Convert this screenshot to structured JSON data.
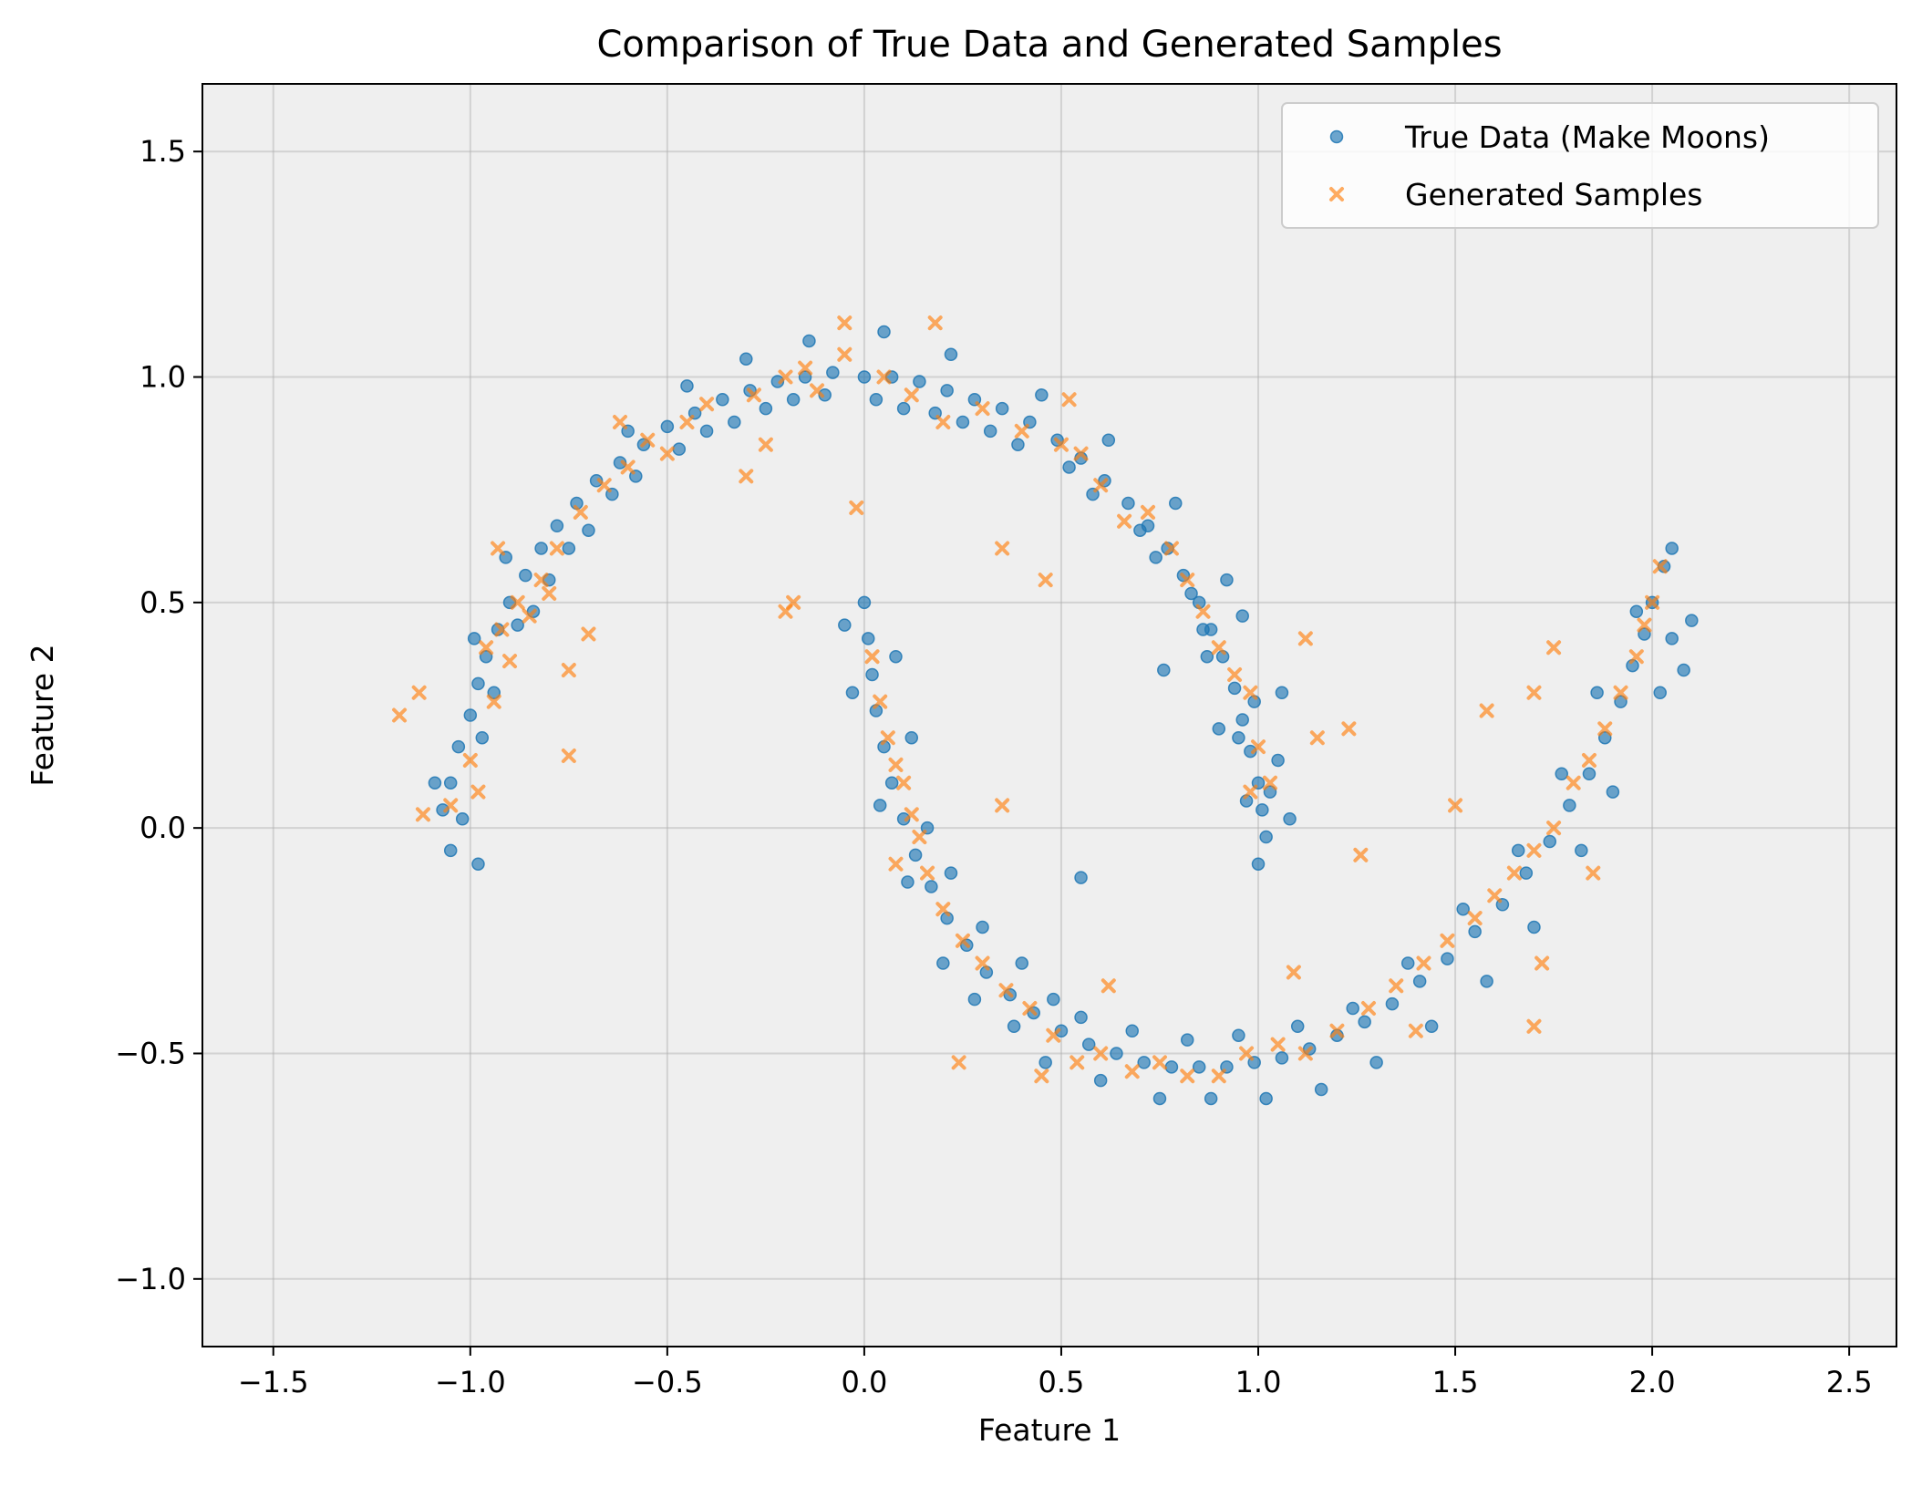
{
  "chart_data": {
    "type": "scatter",
    "title": "Comparison of True Data and Generated Samples",
    "xlabel": "Feature 1",
    "ylabel": "Feature 2",
    "xlim": [
      -1.68,
      2.62
    ],
    "ylim": [
      -1.15,
      1.65
    ],
    "xticks": [
      -1.5,
      -1.0,
      -0.5,
      0.0,
      0.5,
      1.0,
      1.5,
      2.0,
      2.5
    ],
    "xtick_labels": [
      "−1.5",
      "−1.0",
      "−0.5",
      "0.0",
      "0.5",
      "1.0",
      "1.5",
      "2.0",
      "2.5"
    ],
    "yticks": [
      -1.0,
      -0.5,
      0.0,
      0.5,
      1.0,
      1.5
    ],
    "ytick_labels": [
      "−1.0",
      "−0.5",
      "0.0",
      "0.5",
      "1.0",
      "1.5"
    ],
    "grid": true,
    "legend_position": "top-right",
    "background": "#efefef",
    "series": [
      {
        "name": "True Data (Make Moons)",
        "marker": "circle",
        "color": "#1f77b4",
        "alpha": 0.65,
        "points": [
          [
            -1.07,
            0.04
          ],
          [
            -1.05,
            0.1
          ],
          [
            -1.03,
            0.18
          ],
          [
            -1.0,
            0.25
          ],
          [
            -0.98,
            0.32
          ],
          [
            -0.96,
            0.38
          ],
          [
            -0.93,
            0.44
          ],
          [
            -0.9,
            0.5
          ],
          [
            -0.86,
            0.56
          ],
          [
            -0.82,
            0.62
          ],
          [
            -0.78,
            0.67
          ],
          [
            -0.73,
            0.72
          ],
          [
            -0.68,
            0.77
          ],
          [
            -0.62,
            0.81
          ],
          [
            -0.56,
            0.85
          ],
          [
            -0.5,
            0.89
          ],
          [
            -0.43,
            0.92
          ],
          [
            -0.36,
            0.95
          ],
          [
            -0.29,
            0.97
          ],
          [
            -0.22,
            0.99
          ],
          [
            -0.15,
            1.0
          ],
          [
            -0.08,
            1.01
          ],
          [
            0.0,
            1.0
          ],
          [
            0.07,
            1.0
          ],
          [
            0.14,
            0.99
          ],
          [
            0.21,
            0.97
          ],
          [
            0.28,
            0.95
          ],
          [
            0.35,
            0.93
          ],
          [
            0.42,
            0.9
          ],
          [
            0.49,
            0.86
          ],
          [
            0.55,
            0.82
          ],
          [
            0.61,
            0.77
          ],
          [
            0.67,
            0.72
          ],
          [
            0.72,
            0.67
          ],
          [
            0.77,
            0.62
          ],
          [
            0.81,
            0.56
          ],
          [
            0.85,
            0.5
          ],
          [
            0.88,
            0.44
          ],
          [
            0.91,
            0.38
          ],
          [
            0.94,
            0.31
          ],
          [
            0.96,
            0.24
          ],
          [
            0.98,
            0.17
          ],
          [
            1.0,
            0.1
          ],
          [
            1.01,
            0.04
          ],
          [
            1.02,
            -0.02
          ],
          [
            -1.09,
            0.1
          ],
          [
            -1.02,
            0.02
          ],
          [
            -0.97,
            0.2
          ],
          [
            -0.94,
            0.3
          ],
          [
            -0.99,
            0.42
          ],
          [
            -0.88,
            0.45
          ],
          [
            -0.84,
            0.48
          ],
          [
            -0.91,
            0.6
          ],
          [
            -0.8,
            0.55
          ],
          [
            -0.75,
            0.62
          ],
          [
            -0.7,
            0.66
          ],
          [
            -0.64,
            0.74
          ],
          [
            -0.58,
            0.78
          ],
          [
            -0.6,
            0.88
          ],
          [
            -0.47,
            0.84
          ],
          [
            -0.4,
            0.88
          ],
          [
            -0.45,
            0.98
          ],
          [
            -0.33,
            0.9
          ],
          [
            -0.25,
            0.93
          ],
          [
            -0.3,
            1.04
          ],
          [
            -0.18,
            0.95
          ],
          [
            -0.1,
            0.96
          ],
          [
            -0.14,
            1.08
          ],
          [
            0.03,
            0.95
          ],
          [
            0.1,
            0.93
          ],
          [
            0.05,
            1.1
          ],
          [
            0.18,
            0.92
          ],
          [
            0.25,
            0.9
          ],
          [
            0.22,
            1.05
          ],
          [
            0.32,
            0.88
          ],
          [
            0.39,
            0.85
          ],
          [
            0.45,
            0.96
          ],
          [
            0.52,
            0.8
          ],
          [
            0.58,
            0.74
          ],
          [
            0.62,
            0.86
          ],
          [
            0.7,
            0.66
          ],
          [
            0.74,
            0.6
          ],
          [
            0.79,
            0.72
          ],
          [
            0.83,
            0.52
          ],
          [
            0.87,
            0.38
          ],
          [
            0.92,
            0.55
          ],
          [
            0.95,
            0.2
          ],
          [
            0.99,
            0.28
          ],
          [
            1.05,
            0.15
          ],
          [
            1.03,
            0.08
          ],
          [
            0.97,
            0.06
          ],
          [
            1.06,
            0.3
          ],
          [
            1.0,
            -0.08
          ],
          [
            0.9,
            0.22
          ],
          [
            0.86,
            0.44
          ],
          [
            0.0,
            0.5
          ],
          [
            0.01,
            0.42
          ],
          [
            0.02,
            0.34
          ],
          [
            0.03,
            0.26
          ],
          [
            0.05,
            0.18
          ],
          [
            0.07,
            0.1
          ],
          [
            0.1,
            0.02
          ],
          [
            0.13,
            -0.06
          ],
          [
            0.17,
            -0.13
          ],
          [
            0.21,
            -0.2
          ],
          [
            0.26,
            -0.26
          ],
          [
            0.31,
            -0.32
          ],
          [
            0.37,
            -0.37
          ],
          [
            0.43,
            -0.41
          ],
          [
            0.5,
            -0.45
          ],
          [
            0.57,
            -0.48
          ],
          [
            0.64,
            -0.5
          ],
          [
            0.71,
            -0.52
          ],
          [
            0.78,
            -0.53
          ],
          [
            0.85,
            -0.53
          ],
          [
            0.92,
            -0.53
          ],
          [
            0.99,
            -0.52
          ],
          [
            1.06,
            -0.51
          ],
          [
            1.13,
            -0.49
          ],
          [
            1.2,
            -0.46
          ],
          [
            1.27,
            -0.43
          ],
          [
            1.34,
            -0.39
          ],
          [
            1.41,
            -0.34
          ],
          [
            1.48,
            -0.29
          ],
          [
            1.55,
            -0.23
          ],
          [
            1.62,
            -0.17
          ],
          [
            1.68,
            -0.1
          ],
          [
            1.74,
            -0.03
          ],
          [
            1.79,
            0.05
          ],
          [
            1.84,
            0.12
          ],
          [
            1.88,
            0.2
          ],
          [
            1.92,
            0.28
          ],
          [
            1.95,
            0.36
          ],
          [
            1.98,
            0.43
          ],
          [
            2.0,
            0.5
          ],
          [
            -0.05,
            0.45
          ],
          [
            -0.03,
            0.3
          ],
          [
            0.08,
            0.38
          ],
          [
            0.12,
            0.2
          ],
          [
            0.04,
            0.05
          ],
          [
            0.16,
            0.0
          ],
          [
            0.11,
            -0.12
          ],
          [
            0.22,
            -0.1
          ],
          [
            0.2,
            -0.3
          ],
          [
            0.3,
            -0.22
          ],
          [
            0.28,
            -0.38
          ],
          [
            0.4,
            -0.3
          ],
          [
            0.38,
            -0.44
          ],
          [
            0.48,
            -0.38
          ],
          [
            0.46,
            -0.52
          ],
          [
            0.55,
            -0.42
          ],
          [
            0.6,
            -0.56
          ],
          [
            0.68,
            -0.45
          ],
          [
            0.75,
            -0.6
          ],
          [
            0.82,
            -0.47
          ],
          [
            0.88,
            -0.6
          ],
          [
            0.95,
            -0.46
          ],
          [
            1.02,
            -0.6
          ],
          [
            1.1,
            -0.44
          ],
          [
            1.16,
            -0.58
          ],
          [
            1.24,
            -0.4
          ],
          [
            1.3,
            -0.52
          ],
          [
            1.38,
            -0.3
          ],
          [
            1.44,
            -0.44
          ],
          [
            1.52,
            -0.18
          ],
          [
            1.58,
            -0.34
          ],
          [
            1.66,
            -0.05
          ],
          [
            1.7,
            -0.22
          ],
          [
            1.77,
            0.12
          ],
          [
            1.82,
            -0.05
          ],
          [
            1.86,
            0.3
          ],
          [
            1.9,
            0.08
          ],
          [
            1.96,
            0.48
          ],
          [
            2.02,
            0.3
          ],
          [
            2.05,
            0.42
          ],
          [
            2.08,
            0.35
          ],
          [
            2.1,
            0.46
          ],
          [
            2.03,
            0.58
          ],
          [
            2.05,
            0.62
          ],
          [
            -1.05,
            -0.05
          ],
          [
            -0.98,
            -0.08
          ],
          [
            0.55,
            -0.11
          ],
          [
            0.96,
            0.47
          ],
          [
            1.08,
            0.02
          ],
          [
            0.76,
            0.35
          ]
        ]
      },
      {
        "name": "Generated Samples",
        "marker": "x",
        "color": "#ff7f0e",
        "alpha": 0.65,
        "points": [
          [
            -1.18,
            0.25
          ],
          [
            -1.13,
            0.3
          ],
          [
            -1.12,
            0.03
          ],
          [
            -1.05,
            0.05
          ],
          [
            -1.0,
            0.15
          ],
          [
            -0.98,
            0.08
          ],
          [
            -0.96,
            0.4
          ],
          [
            -0.94,
            0.28
          ],
          [
            -0.92,
            0.44
          ],
          [
            -0.9,
            0.37
          ],
          [
            -0.88,
            0.5
          ],
          [
            -0.85,
            0.47
          ],
          [
            -0.82,
            0.55
          ],
          [
            -0.78,
            0.62
          ],
          [
            -0.75,
            0.35
          ],
          [
            -0.75,
            0.16
          ],
          [
            -0.72,
            0.7
          ],
          [
            -0.7,
            0.43
          ],
          [
            -0.66,
            0.76
          ],
          [
            -0.6,
            0.8
          ],
          [
            -0.55,
            0.86
          ],
          [
            -0.5,
            0.83
          ],
          [
            -0.45,
            0.9
          ],
          [
            -0.4,
            0.94
          ],
          [
            -0.3,
            0.78
          ],
          [
            -0.28,
            0.96
          ],
          [
            -0.25,
            0.85
          ],
          [
            -0.2,
            1.0
          ],
          [
            -0.2,
            0.48
          ],
          [
            -0.15,
            1.02
          ],
          [
            -0.12,
            0.97
          ],
          [
            -0.05,
            1.05
          ],
          [
            -0.05,
            1.12
          ],
          [
            -0.02,
            0.71
          ],
          [
            0.05,
            1.0
          ],
          [
            0.12,
            0.96
          ],
          [
            0.18,
            1.12
          ],
          [
            0.2,
            0.9
          ],
          [
            0.3,
            0.93
          ],
          [
            0.35,
            0.62
          ],
          [
            0.4,
            0.88
          ],
          [
            0.46,
            0.55
          ],
          [
            0.5,
            0.85
          ],
          [
            0.55,
            0.83
          ],
          [
            0.6,
            0.76
          ],
          [
            0.66,
            0.68
          ],
          [
            0.72,
            0.7
          ],
          [
            0.78,
            0.62
          ],
          [
            0.82,
            0.55
          ],
          [
            0.86,
            0.48
          ],
          [
            0.9,
            0.4
          ],
          [
            0.94,
            0.34
          ],
          [
            0.98,
            0.3
          ],
          [
            1.0,
            0.18
          ],
          [
            1.03,
            0.1
          ],
          [
            1.12,
            0.42
          ],
          [
            1.15,
            0.2
          ],
          [
            1.23,
            0.22
          ],
          [
            1.26,
            -0.06
          ],
          [
            1.5,
            0.05
          ],
          [
            1.58,
            0.26
          ],
          [
            1.7,
            0.3
          ],
          [
            1.75,
            0.4
          ],
          [
            -0.18,
            0.5
          ],
          [
            0.02,
            0.38
          ],
          [
            0.04,
            0.28
          ],
          [
            0.06,
            0.2
          ],
          [
            0.08,
            0.14
          ],
          [
            0.1,
            0.1
          ],
          [
            0.12,
            0.03
          ],
          [
            0.14,
            -0.02
          ],
          [
            0.16,
            -0.1
          ],
          [
            0.2,
            -0.18
          ],
          [
            0.25,
            -0.25
          ],
          [
            0.3,
            -0.3
          ],
          [
            0.35,
            0.05
          ],
          [
            0.36,
            -0.36
          ],
          [
            0.42,
            -0.4
          ],
          [
            0.48,
            -0.46
          ],
          [
            0.54,
            -0.52
          ],
          [
            0.6,
            -0.5
          ],
          [
            0.68,
            -0.54
          ],
          [
            0.75,
            -0.52
          ],
          [
            0.82,
            -0.55
          ],
          [
            0.9,
            -0.55
          ],
          [
            0.97,
            -0.5
          ],
          [
            1.05,
            -0.48
          ],
          [
            1.09,
            -0.32
          ],
          [
            1.12,
            -0.5
          ],
          [
            1.2,
            -0.45
          ],
          [
            1.28,
            -0.4
          ],
          [
            1.35,
            -0.35
          ],
          [
            1.42,
            -0.3
          ],
          [
            1.48,
            -0.25
          ],
          [
            1.55,
            -0.2
          ],
          [
            1.6,
            -0.15
          ],
          [
            1.65,
            -0.1
          ],
          [
            1.7,
            -0.05
          ],
          [
            1.75,
            0.0
          ],
          [
            1.8,
            0.1
          ],
          [
            1.84,
            0.15
          ],
          [
            1.88,
            0.22
          ],
          [
            1.92,
            0.3
          ],
          [
            1.96,
            0.38
          ],
          [
            1.98,
            0.45
          ],
          [
            2.0,
            0.5
          ],
          [
            2.02,
            0.58
          ],
          [
            1.85,
            -0.1
          ],
          [
            1.7,
            -0.44
          ],
          [
            0.24,
            -0.52
          ],
          [
            -0.93,
            0.62
          ],
          [
            -0.8,
            0.52
          ],
          [
            -0.62,
            0.9
          ],
          [
            0.08,
            -0.08
          ],
          [
            0.52,
            0.95
          ],
          [
            1.72,
            -0.3
          ],
          [
            0.45,
            -0.55
          ],
          [
            0.62,
            -0.35
          ],
          [
            1.4,
            -0.45
          ],
          [
            0.98,
            0.08
          ]
        ]
      }
    ]
  }
}
